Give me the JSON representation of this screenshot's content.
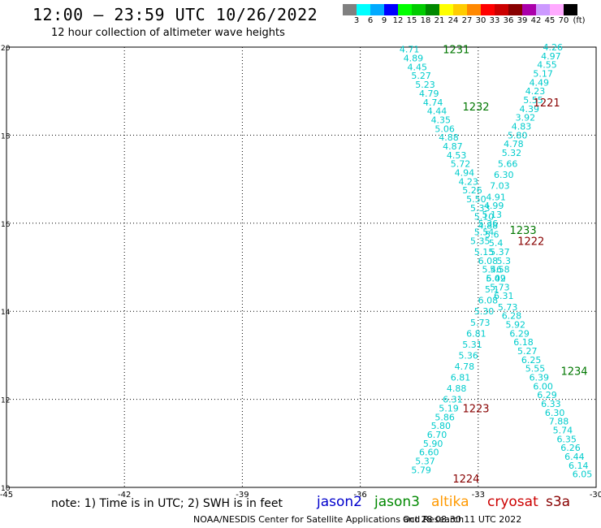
{
  "header": {
    "title": "12:00 – 23:59 UTC 10/26/2022",
    "subtitle": "12 hour collection of altimeter wave heights"
  },
  "colorbar": {
    "unit": "(ft)",
    "labels": [
      "3",
      "6",
      "9",
      "12",
      "15",
      "18",
      "21",
      "24",
      "27",
      "30",
      "33",
      "36",
      "39",
      "42",
      "45",
      "70"
    ],
    "colors": [
      "#808080",
      "#00ffff",
      "#00aaff",
      "#0000ff",
      "#00ff00",
      "#00cc00",
      "#008800",
      "#ffff00",
      "#ffcc00",
      "#ff8800",
      "#ff0000",
      "#cc0000",
      "#880000",
      "#aa00aa",
      "#cc99ff",
      "#ffaaff",
      "#000000"
    ]
  },
  "map": {
    "lon_ticks": [
      -45,
      -42,
      -39,
      -36,
      -33,
      -30
    ],
    "lon_labels": [
      "-45",
      "-42",
      "-39",
      "-36",
      "-33",
      "-30"
    ],
    "lat_ticks": [
      10,
      12,
      14,
      16,
      18,
      20
    ],
    "lat_labels": [
      "10",
      "12",
      "14",
      "16",
      "18",
      "20"
    ],
    "lon_range": [
      -45,
      -30
    ],
    "lat_range": [
      10,
      20
    ],
    "grid": "dotted",
    "obs_color": "#00cccc",
    "tracks": [
      {
        "label": "1231",
        "satellite": "jason3",
        "color": "#007700",
        "lon": -33.9,
        "lat": 19.95
      },
      {
        "label": "1232",
        "satellite": "jason3",
        "color": "#007700",
        "lon": -33.4,
        "lat": 18.65
      },
      {
        "label": "1221",
        "satellite": "s3a",
        "color": "#880000",
        "lon": -31.6,
        "lat": 18.75
      },
      {
        "label": "1233",
        "satellite": "jason3",
        "color": "#007700",
        "lon": -32.2,
        "lat": 15.85
      },
      {
        "label": "1222",
        "satellite": "s3a",
        "color": "#880000",
        "lon": -32.0,
        "lat": 15.6
      },
      {
        "label": "1234",
        "satellite": "jason3",
        "color": "#007700",
        "lon": -30.9,
        "lat": 12.65
      },
      {
        "label": "1223",
        "satellite": "s3a",
        "color": "#880000",
        "lon": -33.4,
        "lat": 11.8
      },
      {
        "label": "1224",
        "satellite": "s3a",
        "color": "#880000",
        "lon": -33.65,
        "lat": 10.2
      }
    ],
    "observations": [
      {
        "v": "4.71",
        "lon": -34.75,
        "lat": 19.95
      },
      {
        "v": "4.89",
        "lon": -34.65,
        "lat": 19.75
      },
      {
        "v": "4.45",
        "lon": -34.55,
        "lat": 19.55
      },
      {
        "v": "5.27",
        "lon": -34.45,
        "lat": 19.35
      },
      {
        "v": "5.23",
        "lon": -34.35,
        "lat": 19.15
      },
      {
        "v": "4.79",
        "lon": -34.25,
        "lat": 18.95
      },
      {
        "v": "4.74",
        "lon": -34.15,
        "lat": 18.75
      },
      {
        "v": "4.44",
        "lon": -34.05,
        "lat": 18.55
      },
      {
        "v": "4.35",
        "lon": -33.95,
        "lat": 18.35
      },
      {
        "v": "5.06",
        "lon": -33.85,
        "lat": 18.15
      },
      {
        "v": "4.88",
        "lon": -33.75,
        "lat": 17.95
      },
      {
        "v": "4.87",
        "lon": -33.65,
        "lat": 17.75
      },
      {
        "v": "4.53",
        "lon": -33.55,
        "lat": 17.55
      },
      {
        "v": "5.72",
        "lon": -33.45,
        "lat": 17.35
      },
      {
        "v": "4.94",
        "lon": -33.35,
        "lat": 17.15
      },
      {
        "v": "4.23",
        "lon": -33.25,
        "lat": 16.95
      },
      {
        "v": "5.26",
        "lon": -33.15,
        "lat": 16.75
      },
      {
        "v": "5.50",
        "lon": -33.05,
        "lat": 16.55
      },
      {
        "v": "5.33",
        "lon": -32.95,
        "lat": 16.35
      },
      {
        "v": "5.10",
        "lon": -32.85,
        "lat": 16.15
      },
      {
        "v": "4.88",
        "lon": -32.75,
        "lat": 15.95
      },
      {
        "v": "5.6",
        "lon": -32.65,
        "lat": 15.75
      },
      {
        "v": "5.4",
        "lon": -32.55,
        "lat": 15.55
      },
      {
        "v": "5.37",
        "lon": -32.45,
        "lat": 15.35
      },
      {
        "v": "5.3",
        "lon": -32.35,
        "lat": 15.15
      },
      {
        "v": "5.58",
        "lon": -32.45,
        "lat": 14.95
      },
      {
        "v": "6.09",
        "lon": -32.55,
        "lat": 14.75
      },
      {
        "v": "5.1",
        "lon": -32.65,
        "lat": 14.5
      },
      {
        "v": "6.08",
        "lon": -32.75,
        "lat": 14.25
      },
      {
        "v": "5.30",
        "lon": -32.85,
        "lat": 14.0
      },
      {
        "v": "5.73",
        "lon": -32.95,
        "lat": 13.75
      },
      {
        "v": "6.81",
        "lon": -33.05,
        "lat": 13.5
      },
      {
        "v": "5.31",
        "lon": -33.15,
        "lat": 13.25
      },
      {
        "v": "5.36",
        "lon": -33.25,
        "lat": 13.0
      },
      {
        "v": "4.78",
        "lon": -33.35,
        "lat": 12.75
      },
      {
        "v": "6.81",
        "lon": -33.45,
        "lat": 12.5
      },
      {
        "v": "4.88",
        "lon": -33.55,
        "lat": 12.25
      },
      {
        "v": "6.31",
        "lon": -33.65,
        "lat": 12.0
      },
      {
        "v": "5.19",
        "lon": -33.75,
        "lat": 11.8
      },
      {
        "v": "5.86",
        "lon": -33.85,
        "lat": 11.6
      },
      {
        "v": "5.80",
        "lon": -33.95,
        "lat": 11.4
      },
      {
        "v": "6.70",
        "lon": -34.05,
        "lat": 11.2
      },
      {
        "v": "5.90",
        "lon": -34.15,
        "lat": 11.0
      },
      {
        "v": "6.60",
        "lon": -34.25,
        "lat": 10.8
      },
      {
        "v": "5.37",
        "lon": -34.35,
        "lat": 10.6
      },
      {
        "v": "5.79",
        "lon": -34.45,
        "lat": 10.4
      },
      {
        "v": "4.26",
        "lon": -31.1,
        "lat": 20.0
      },
      {
        "v": "4.97",
        "lon": -31.15,
        "lat": 19.8
      },
      {
        "v": "4.55",
        "lon": -31.25,
        "lat": 19.6
      },
      {
        "v": "5.17",
        "lon": -31.35,
        "lat": 19.4
      },
      {
        "v": "4.49",
        "lon": -31.45,
        "lat": 19.2
      },
      {
        "v": "4.23",
        "lon": -31.55,
        "lat": 19.0
      },
      {
        "v": "5.55",
        "lon": -31.6,
        "lat": 18.8
      },
      {
        "v": "4.39",
        "lon": -31.7,
        "lat": 18.6
      },
      {
        "v": "3.92",
        "lon": -31.8,
        "lat": 18.4
      },
      {
        "v": "4.83",
        "lon": -31.9,
        "lat": 18.2
      },
      {
        "v": "5.80",
        "lon": -32.0,
        "lat": 18.0
      },
      {
        "v": "4.78",
        "lon": -32.1,
        "lat": 17.8
      },
      {
        "v": "5.32",
        "lon": -32.15,
        "lat": 17.6
      },
      {
        "v": "5.66",
        "lon": -32.25,
        "lat": 17.35
      },
      {
        "v": "6.30",
        "lon": -32.35,
        "lat": 17.1
      },
      {
        "v": "7.03",
        "lon": -32.45,
        "lat": 16.85
      },
      {
        "v": "4.91",
        "lon": -32.55,
        "lat": 16.6
      },
      {
        "v": "4.99",
        "lon": -32.6,
        "lat": 16.4
      },
      {
        "v": "5.13",
        "lon": -32.65,
        "lat": 16.2
      },
      {
        "v": "5.36",
        "lon": -32.75,
        "lat": 16.0
      },
      {
        "v": "5.54",
        "lon": -32.85,
        "lat": 15.8
      },
      {
        "v": "5.35",
        "lon": -32.95,
        "lat": 15.6
      },
      {
        "v": "5.15",
        "lon": -32.85,
        "lat": 15.35
      },
      {
        "v": "6.08",
        "lon": -32.75,
        "lat": 15.15
      },
      {
        "v": "5.46",
        "lon": -32.65,
        "lat": 14.95
      },
      {
        "v": "5.42",
        "lon": -32.55,
        "lat": 14.75
      },
      {
        "v": "5.73",
        "lon": -32.45,
        "lat": 14.55
      },
      {
        "v": "6.31",
        "lon": -32.35,
        "lat": 14.35
      },
      {
        "v": "5.73",
        "lon": -32.25,
        "lat": 14.1
      },
      {
        "v": "6.28",
        "lon": -32.15,
        "lat": 13.9
      },
      {
        "v": "5.92",
        "lon": -32.05,
        "lat": 13.7
      },
      {
        "v": "6.29",
        "lon": -31.95,
        "lat": 13.5
      },
      {
        "v": "6.18",
        "lon": -31.85,
        "lat": 13.3
      },
      {
        "v": "5.27",
        "lon": -31.75,
        "lat": 13.1
      },
      {
        "v": "6.25",
        "lon": -31.65,
        "lat": 12.9
      },
      {
        "v": "5.55",
        "lon": -31.55,
        "lat": 12.7
      },
      {
        "v": "6.39",
        "lon": -31.45,
        "lat": 12.5
      },
      {
        "v": "6.00",
        "lon": -31.35,
        "lat": 12.3
      },
      {
        "v": "6.29",
        "lon": -31.25,
        "lat": 12.1
      },
      {
        "v": "6.33",
        "lon": -31.15,
        "lat": 11.9
      },
      {
        "v": "6.30",
        "lon": -31.05,
        "lat": 11.7
      },
      {
        "v": "7.88",
        "lon": -30.95,
        "lat": 11.5
      },
      {
        "v": "5.74",
        "lon": -30.85,
        "lat": 11.3
      },
      {
        "v": "6.35",
        "lon": -30.75,
        "lat": 11.1
      },
      {
        "v": "6.26",
        "lon": -30.65,
        "lat": 10.9
      },
      {
        "v": "6.44",
        "lon": -30.55,
        "lat": 10.7
      },
      {
        "v": "6.14",
        "lon": -30.45,
        "lat": 10.5
      },
      {
        "v": "6.05",
        "lon": -30.35,
        "lat": 10.3
      }
    ]
  },
  "legend": {
    "note": "note: 1) Time is in UTC; 2) SWH is in feet",
    "satellites": [
      {
        "name": "jason2",
        "color": "#0000cc"
      },
      {
        "name": "jason3",
        "color": "#008800"
      },
      {
        "name": "altika",
        "color": "#ff9900"
      },
      {
        "name": "cryosat",
        "color": "#cc0000"
      },
      {
        "name": "s3a",
        "color": "#880000"
      }
    ]
  },
  "footer": {
    "credit": "NOAA/NESDIS Center for Satellite Applications and Research",
    "timestamp": "Oct 28 08:30:11 UTC 2022"
  }
}
